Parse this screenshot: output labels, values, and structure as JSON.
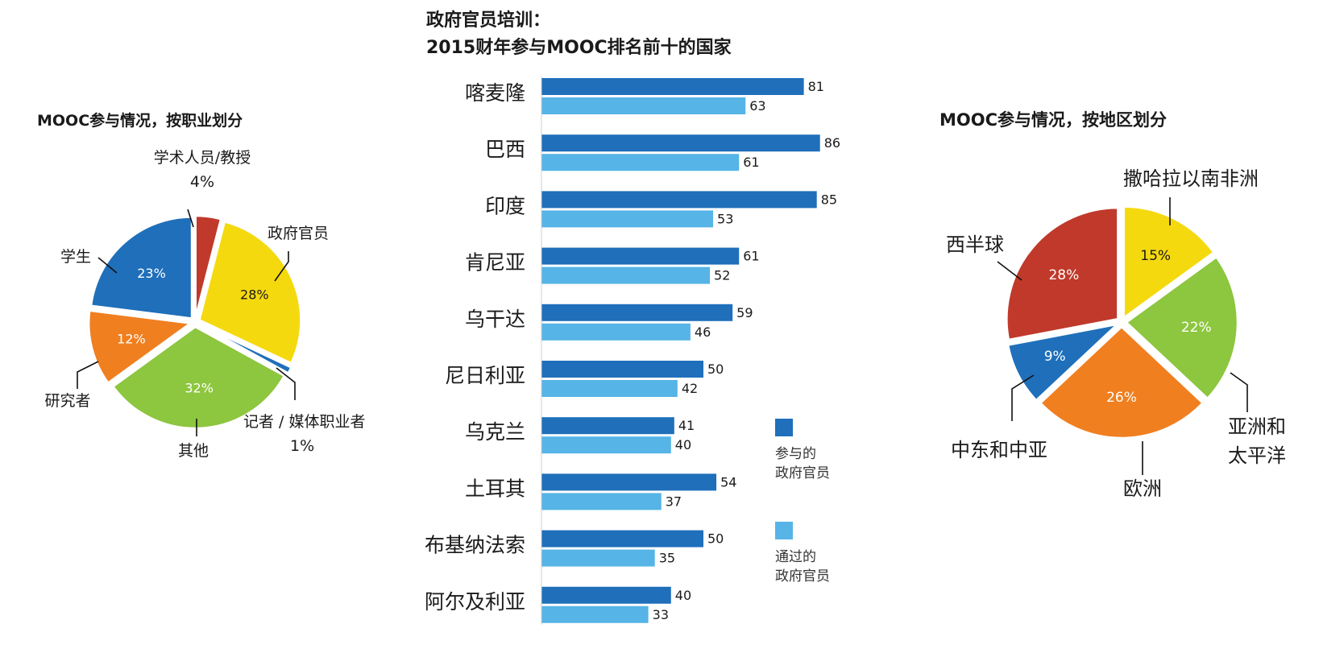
{
  "colors": {
    "dark_blue": "#1f6fba",
    "light_blue": "#56b4e6",
    "red": "#c0392b",
    "yellow": "#f5d90f",
    "green": "#8dc63f",
    "orange": "#f07f20",
    "blue": "#1f6fba"
  },
  "chart_data": [
    {
      "type": "pie",
      "title": "MOOC参与情况，按职业划分",
      "slices": [
        {
          "label": "学术人员/教授",
          "value": 4,
          "display": "4%",
          "color": "#c0392b"
        },
        {
          "label": "政府官员",
          "value": 28,
          "display": "28%",
          "color": "#f5d90f"
        },
        {
          "label": "记者 / 媒体职业者",
          "value": 1,
          "display": "1%",
          "color": "#1f6fba"
        },
        {
          "label": "其他",
          "value": 32,
          "display": "32%",
          "color": "#8dc63f"
        },
        {
          "label": "研究者",
          "value": 12,
          "display": "12%",
          "color": "#f07f20"
        },
        {
          "label": "学生",
          "value": 23,
          "display": "23%",
          "color": "#1f6fba"
        }
      ]
    },
    {
      "type": "bar",
      "orientation": "horizontal",
      "title_line1": "政府官员培训：",
      "title_line2": "2015财年参与MOOC排名前十的国家",
      "categories": [
        "喀麦隆",
        "巴西",
        "印度",
        "肯尼亚",
        "乌干达",
        "尼日利亚",
        "乌克兰",
        "土耳其",
        "布基纳法索",
        "阿尔及利亚"
      ],
      "series": [
        {
          "name": "参与的\n政府官员",
          "name_line1": "参与的",
          "name_line2": "政府官员",
          "color": "#1f6fba",
          "values": [
            81,
            86,
            85,
            61,
            59,
            50,
            41,
            54,
            50,
            40
          ]
        },
        {
          "name": "通过的\n政府官员",
          "name_line1": "通过的",
          "name_line2": "政府官员",
          "color": "#56b4e6",
          "values": [
            63,
            61,
            53,
            52,
            46,
            42,
            40,
            37,
            35,
            33
          ]
        }
      ],
      "xlim": [
        0,
        100
      ]
    },
    {
      "type": "pie",
      "title": "MOOC参与情况，按地区划分",
      "slices": [
        {
          "label": "撒哈拉以南非洲",
          "value": 15,
          "display": "15%",
          "color": "#f5d90f"
        },
        {
          "label": "亚洲和太平洋",
          "label_line1": "亚洲和",
          "label_line2": "太平洋",
          "value": 22,
          "display": "22%",
          "color": "#8dc63f"
        },
        {
          "label": "欧洲",
          "value": 26,
          "display": "26%",
          "color": "#f07f20"
        },
        {
          "label": "中东和中亚",
          "value": 9,
          "display": "9%",
          "color": "#1f6fba"
        },
        {
          "label": "西半球",
          "value": 28,
          "display": "28%",
          "color": "#c0392b"
        }
      ]
    }
  ]
}
